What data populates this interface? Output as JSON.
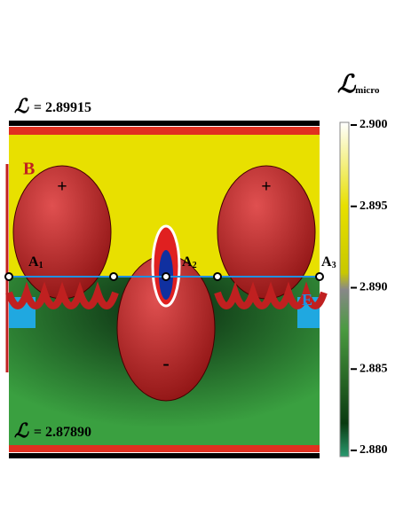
{
  "top_label": {
    "symbol": "ℒ",
    "value": "= 2.89915"
  },
  "bottom_label": {
    "symbol": "ℒ",
    "value": "= 2.87890"
  },
  "colorbar": {
    "symbol": "ℒ",
    "sub": "micro",
    "lim": [
      2.88,
      2.9
    ],
    "ticks": [
      {
        "value": 2.9,
        "label": "2.900"
      },
      {
        "value": 2.895,
        "label": "2.895"
      },
      {
        "value": 2.89,
        "label": "2.890"
      },
      {
        "value": 2.885,
        "label": "2.885"
      },
      {
        "value": 2.88,
        "label": "2.880"
      }
    ]
  },
  "field": {
    "B": "B",
    "E": "E",
    "plus_left": "+",
    "plus_right": "+",
    "minus": "-"
  },
  "points": [
    {
      "letter": "A",
      "sub": "1"
    },
    {
      "letter": "A",
      "sub": "2"
    },
    {
      "letter": "A",
      "sub": "3"
    }
  ]
}
